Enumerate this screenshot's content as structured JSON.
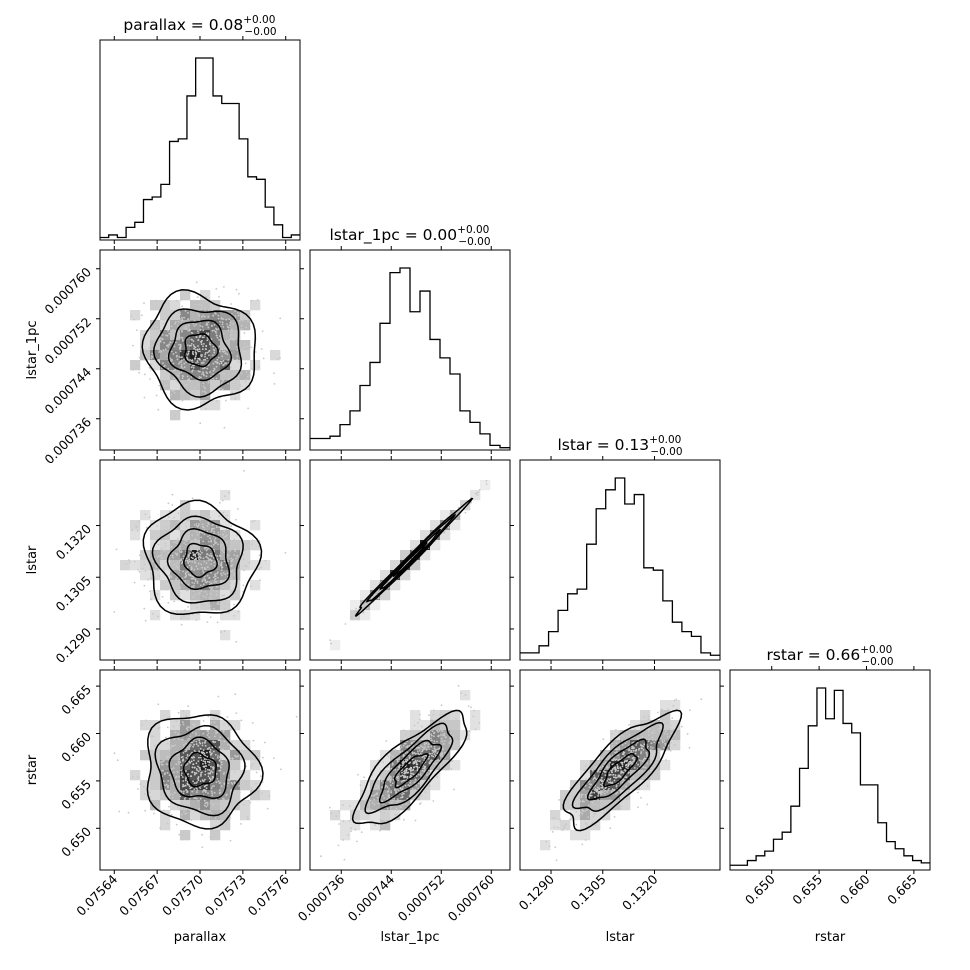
{
  "chart_data": {
    "type": "corner",
    "parameters": [
      "parallax",
      "lstar_1pc",
      "lstar",
      "rstar"
    ],
    "axis_labels": {
      "x": [
        "parallax",
        "lstar_1pc",
        "lstar",
        "rstar"
      ],
      "y": [
        "lstar_1pc",
        "lstar",
        "rstar"
      ]
    },
    "titles": [
      {
        "param": "parallax",
        "prefix": "parallax = 0.08",
        "sup": "+0.00",
        "sub": "−0.00"
      },
      {
        "param": "lstar_1pc",
        "prefix": "lstar_1pc = 0.00",
        "sup": "+0.00",
        "sub": "−0.00"
      },
      {
        "param": "lstar",
        "prefix": "lstar = 0.13",
        "sup": "+0.00",
        "sub": "−0.00"
      },
      {
        "param": "rstar",
        "prefix": "rstar = 0.66",
        "sup": "+0.00",
        "sub": "−0.00"
      }
    ],
    "ranges": {
      "parallax": [
        0.07563,
        0.07577
      ],
      "lstar_1pc": [
        0.000731,
        0.000763
      ],
      "lstar": [
        0.1281,
        0.1339
      ],
      "rstar": [
        0.6456,
        0.6667
      ]
    },
    "ticks": {
      "parallax": {
        "values": [
          0.07564,
          0.07567,
          0.0757,
          0.07573,
          0.07576
        ],
        "labels": [
          "0.07564",
          "0.07567",
          "0.07570",
          "0.07573",
          "0.07576"
        ]
      },
      "lstar_1pc": {
        "values": [
          0.000736,
          0.000744,
          0.000752,
          0.00076
        ],
        "labels": [
          "0.000736",
          "0.000744",
          "0.000752",
          "0.000760"
        ]
      },
      "lstar": {
        "values": [
          0.129,
          0.1305,
          0.132
        ],
        "labels": [
          "0.1290",
          "0.1305",
          "0.1320"
        ]
      },
      "rstar": {
        "values": [
          0.65,
          0.655,
          0.66,
          0.665
        ],
        "labels": [
          "0.650",
          "0.655",
          "0.660",
          "0.665"
        ]
      }
    },
    "histograms": {
      "parallax": [
        1,
        2,
        1,
        5,
        7,
        16,
        17,
        22,
        39,
        40,
        57,
        72,
        72,
        57,
        54,
        54,
        40,
        25,
        24,
        13,
        6,
        1,
        2
      ],
      "lstar_1pc": [
        5,
        5,
        6,
        11,
        17,
        28,
        38,
        55,
        77,
        79,
        60,
        69,
        48,
        40,
        33,
        17,
        12,
        7,
        2,
        1
      ],
      "lstar": [
        3,
        3,
        6,
        12,
        21,
        28,
        30,
        49,
        64,
        72,
        77,
        66,
        70,
        39,
        38,
        25,
        16,
        12,
        10,
        3,
        2
      ],
      "rstar": [
        2,
        2,
        4,
        6,
        8,
        13,
        16,
        27,
        43,
        61,
        77,
        64,
        76,
        62,
        58,
        36,
        36,
        20,
        12,
        9,
        6,
        4,
        3
      ]
    },
    "correlations": {
      "parallax|lstar_1pc": -0.05,
      "parallax|lstar": -0.05,
      "parallax|rstar": -0.05,
      "lstar_1pc|lstar": 0.995,
      "lstar_1pc|rstar": 0.8,
      "lstar|rstar": 0.8
    },
    "grid": false,
    "legend": "none"
  }
}
